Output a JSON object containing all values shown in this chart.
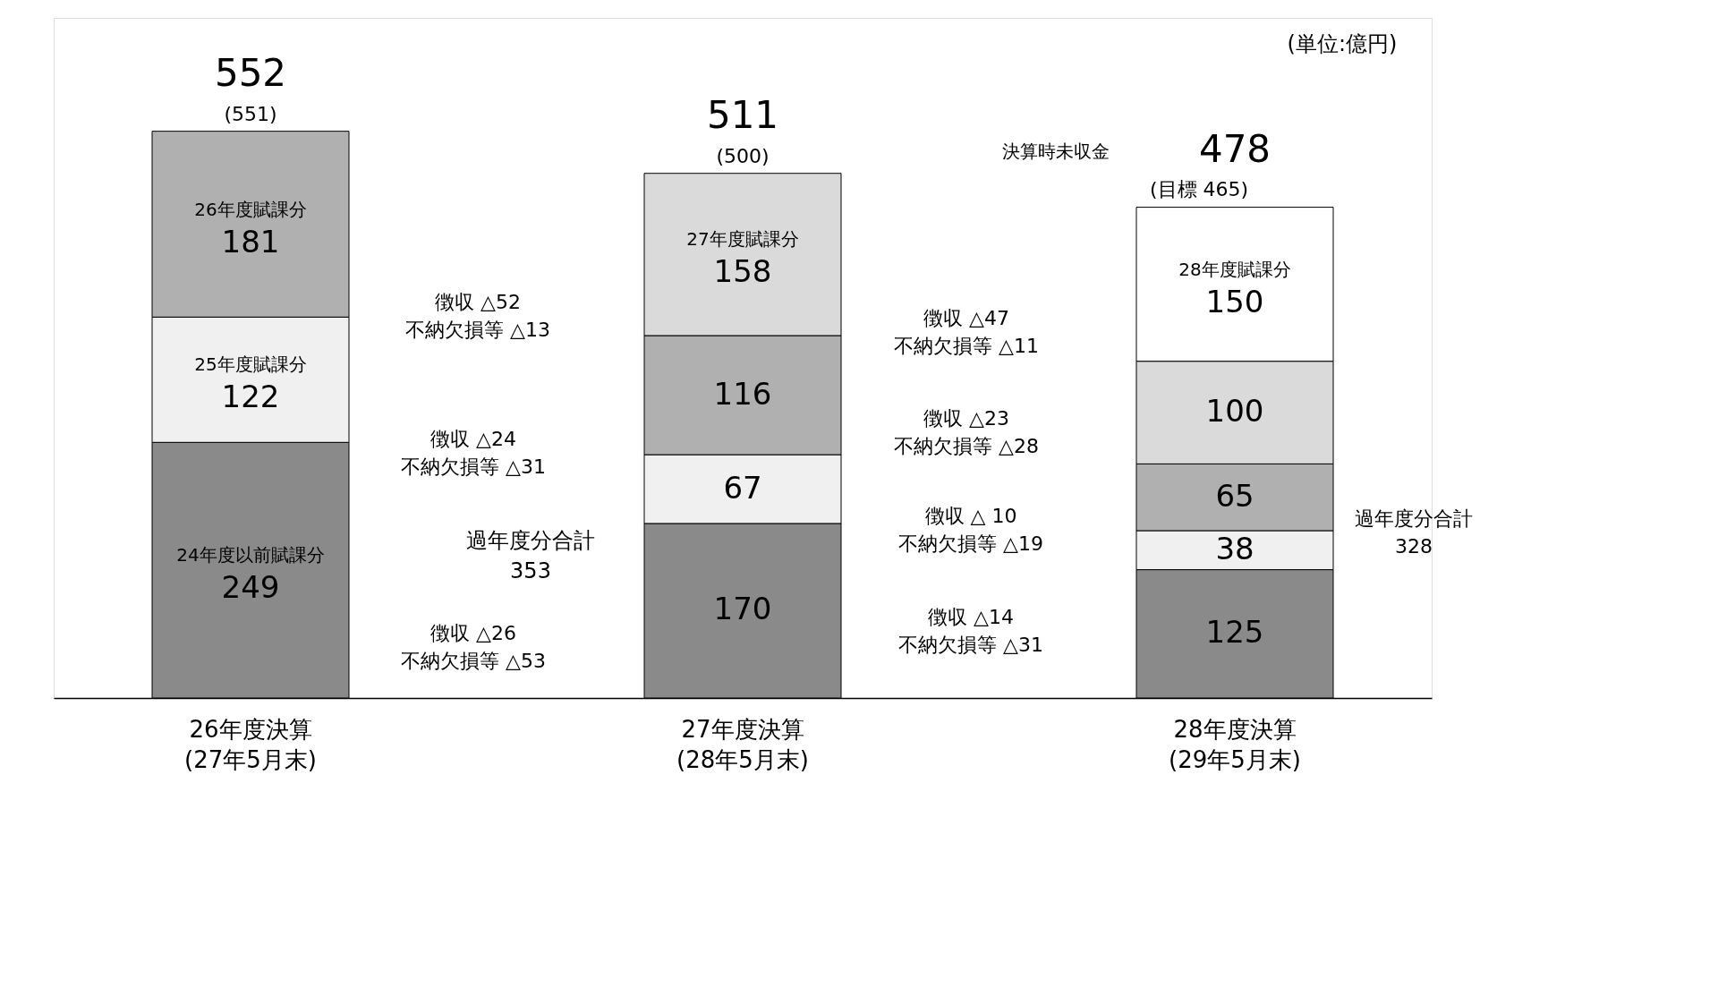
{
  "chart_data": {
    "type": "bar",
    "stacked": true,
    "data_labels": true,
    "categories": [
      "26年度決算\n(27年5月末)",
      "27年度決算\n(28年5月末)",
      "28年度決算\n(29年5月末)"
    ],
    "series": [
      {
        "name": "24年度以前賦課分",
        "color": "#8a8a8a",
        "values": [
          249,
          170,
          125
        ]
      },
      {
        "name": "25年度賦課分",
        "color": "#f0f0f0",
        "values": [
          122,
          67,
          38
        ]
      },
      {
        "name": "26年度賦課分",
        "color": "#b0b0b0",
        "values": [
          181,
          116,
          65
        ]
      },
      {
        "name": "27年度賦課分",
        "color": "#dadada",
        "values": [
          null,
          158,
          100
        ]
      },
      {
        "name": "28年度賦課分",
        "color": "#ffffff",
        "values": [
          null,
          null,
          150
        ]
      }
    ],
    "totals": [
      "552",
      "511",
      "478"
    ],
    "annotations": [
      "(単位:億円)",
      "(551)",
      "(500)",
      "決算時未収金",
      "(目標 465)",
      "徴収 △52\n不納欠損等 △13",
      "徴収 △24\n不納欠損等 △31",
      "徴収 △26\n不納欠損等 △53",
      "過年度分合計\n353",
      "徴収 △47\n不納欠損等 △11",
      "徴収 △23\n不納欠損等 △28",
      "徴収 △ 10\n不納欠損等 △19",
      "徴収 △14\n不納欠損等 △31",
      "過年度分合計\n328"
    ]
  }
}
